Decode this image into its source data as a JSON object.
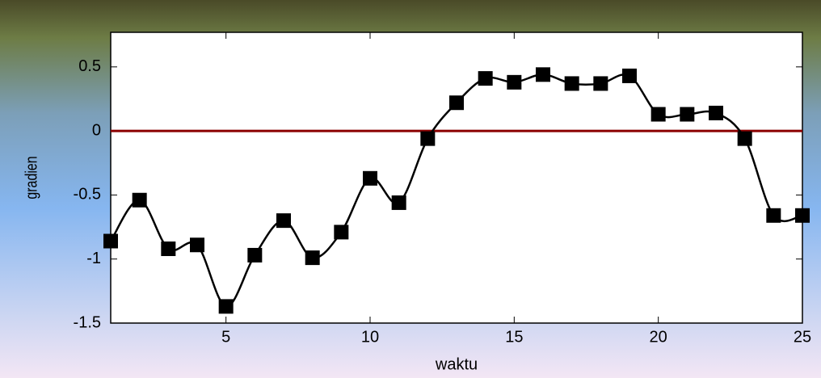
{
  "chart_data": {
    "type": "line",
    "x": [
      1,
      2,
      3,
      4,
      5,
      6,
      7,
      8,
      9,
      10,
      11,
      12,
      13,
      14,
      15,
      16,
      17,
      18,
      19,
      20,
      21,
      22,
      23,
      24,
      25
    ],
    "series": [
      {
        "name": "gradien",
        "color": "#000000",
        "marker": "square",
        "values": [
          -0.86,
          -0.54,
          -0.92,
          -0.89,
          -1.37,
          -0.97,
          -0.7,
          -0.99,
          -0.79,
          -0.37,
          -0.56,
          -0.06,
          0.22,
          0.41,
          0.38,
          0.44,
          0.37,
          0.37,
          0.43,
          0.13,
          0.13,
          0.14,
          -0.06,
          -0.66,
          -0.66
        ]
      }
    ],
    "xlabel": "waktu",
    "ylabel": "gradien",
    "xlim": [
      1,
      25
    ],
    "xticks": [
      5,
      10,
      15,
      20,
      25
    ],
    "ylim": [
      -1.5,
      0.77
    ],
    "yticks": [
      -1.5,
      -1,
      -0.5,
      0,
      0.5
    ],
    "reference_line": {
      "value": 0,
      "color": "#8b0000"
    },
    "grid": false
  }
}
